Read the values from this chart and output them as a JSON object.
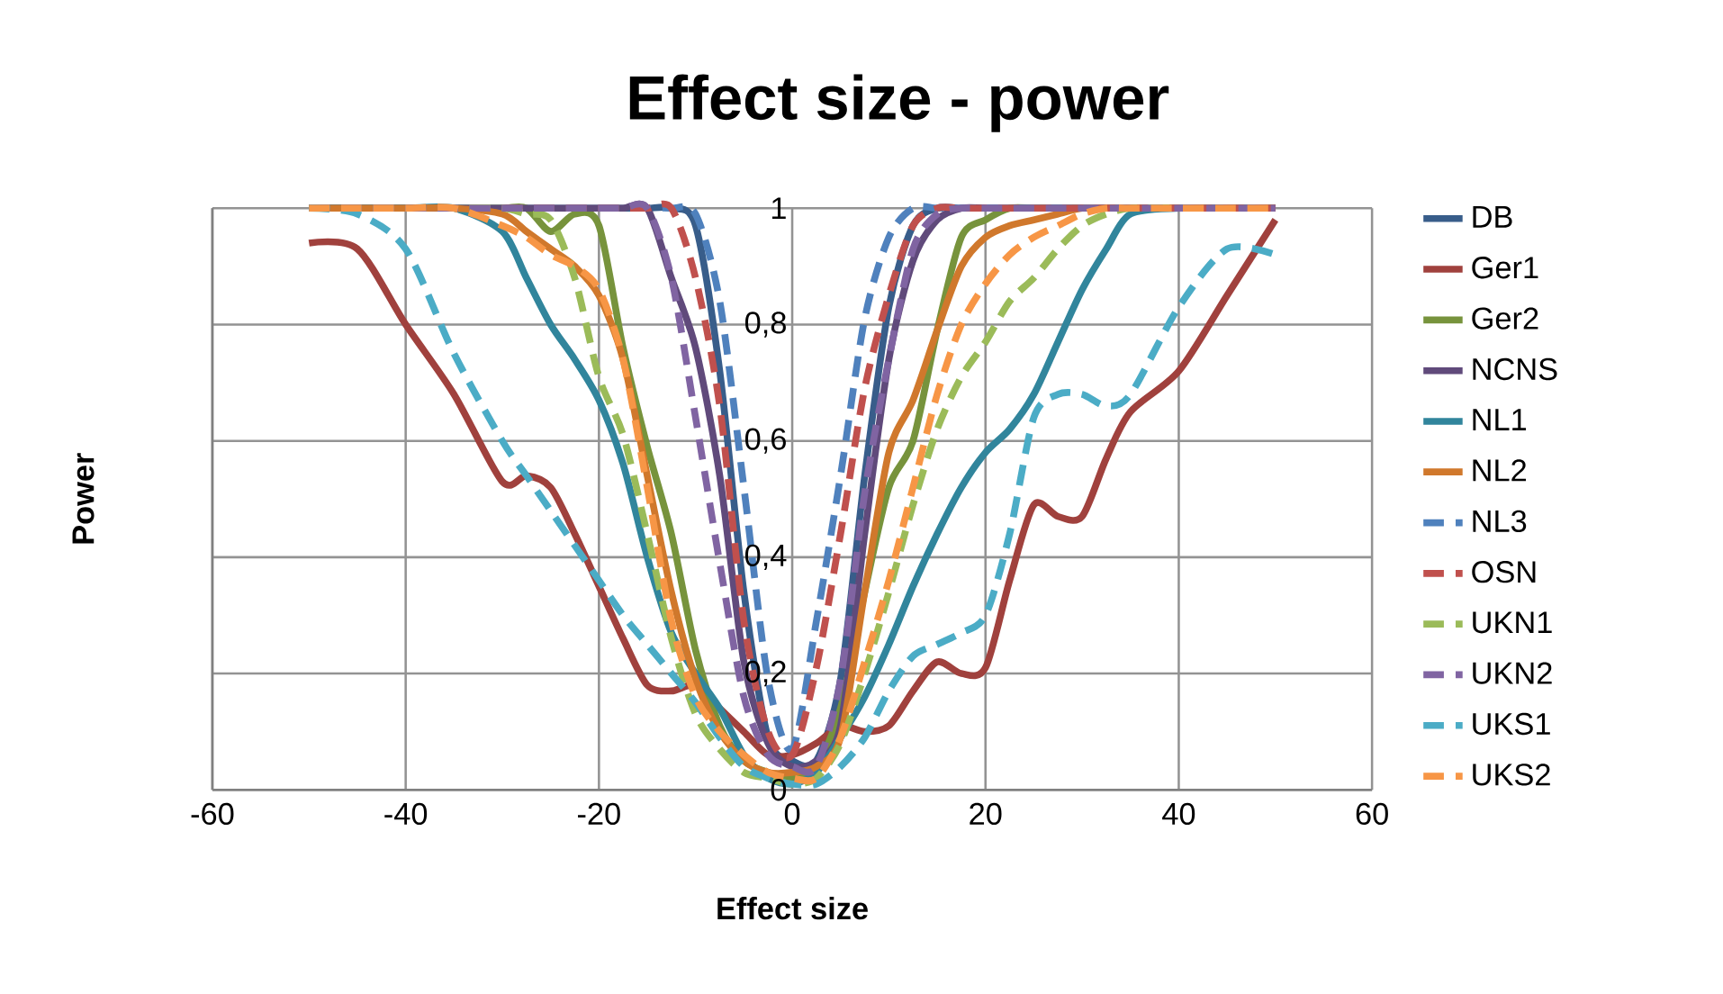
{
  "chart_data": {
    "type": "line",
    "title": "Effect size - power",
    "xlabel": "Effect size",
    "ylabel": "Power",
    "x": [
      -50,
      -45,
      -40,
      -35,
      -30,
      -27.5,
      -25,
      -22.5,
      -20,
      -17.5,
      -15,
      -12.5,
      -10,
      -7.5,
      -5,
      -2.5,
      0,
      2.5,
      5,
      7.5,
      10,
      12.5,
      15,
      17.5,
      20,
      22.5,
      25,
      27.5,
      30,
      32.5,
      35,
      40,
      45,
      50
    ],
    "xlim": [
      -60,
      60
    ],
    "xticks": [
      -60,
      -40,
      -20,
      0,
      20,
      40,
      60
    ],
    "ylim": [
      0,
      1
    ],
    "yticks": [
      0,
      {
        "value": 0.2,
        "label": "0,2"
      },
      {
        "value": 0.4,
        "label": "0,4"
      },
      {
        "value": 0.6,
        "label": "0,6"
      },
      {
        "value": 0.8,
        "label": "0,8"
      },
      1
    ],
    "grid": true,
    "legend": "right",
    "series": [
      {
        "name": "DB",
        "color": "#385d8a",
        "line_style": "solid",
        "values": [
          1,
          1,
          1,
          1,
          1,
          1,
          1,
          1,
          1,
          1,
          1,
          1,
          0.97,
          0.72,
          0.34,
          0.09,
          0.05,
          0.05,
          0.19,
          0.54,
          0.83,
          0.97,
          1,
          1,
          1,
          1,
          1,
          1,
          1,
          1,
          1,
          1,
          1,
          1
        ]
      },
      {
        "name": "Ger1",
        "color": "#a0413d",
        "line_style": "solid",
        "values": [
          0.94,
          0.93,
          0.8,
          0.68,
          0.53,
          0.54,
          0.52,
          0.44,
          0.35,
          0.26,
          0.18,
          0.17,
          0.18,
          0.14,
          0.1,
          0.06,
          0.06,
          0.08,
          0.11,
          0.1,
          0.11,
          0.17,
          0.22,
          0.2,
          0.21,
          0.36,
          0.49,
          0.47,
          0.47,
          0.57,
          0.65,
          0.72,
          0.85,
          0.98
        ]
      },
      {
        "name": "Ger2",
        "color": "#77933c",
        "line_style": "solid",
        "values": [
          1,
          1,
          1,
          1,
          1,
          1,
          0.96,
          0.99,
          0.97,
          0.76,
          0.59,
          0.44,
          0.24,
          0.11,
          0.05,
          0.03,
          0.02,
          0.04,
          0.14,
          0.34,
          0.52,
          0.6,
          0.79,
          0.95,
          0.98,
          1,
          1,
          1,
          1,
          1,
          1,
          1,
          1,
          1
        ]
      },
      {
        "name": "NCNS",
        "color": "#604a7b",
        "line_style": "solid",
        "values": [
          1,
          1,
          1,
          1,
          1,
          1,
          1,
          1,
          1,
          1,
          1,
          0.88,
          0.76,
          0.54,
          0.22,
          0.08,
          0.04,
          0.05,
          0.11,
          0.44,
          0.74,
          0.91,
          0.98,
          1,
          1,
          1,
          1,
          1,
          1,
          1,
          1,
          1,
          1,
          1
        ]
      },
      {
        "name": "NL1",
        "color": "#31859c",
        "line_style": "solid",
        "values": [
          1,
          1,
          1,
          1,
          0.96,
          0.88,
          0.8,
          0.74,
          0.67,
          0.56,
          0.4,
          0.27,
          0.2,
          0.14,
          0.06,
          0.02,
          0.01,
          0.03,
          0.09,
          0.16,
          0.25,
          0.35,
          0.44,
          0.52,
          0.58,
          0.62,
          0.68,
          0.77,
          0.86,
          0.93,
          0.99,
          1,
          1,
          1
        ]
      },
      {
        "name": "NL2",
        "color": "#d0782c",
        "line_style": "solid",
        "values": [
          1,
          1,
          1,
          1,
          0.99,
          0.96,
          0.93,
          0.9,
          0.85,
          0.74,
          0.54,
          0.34,
          0.19,
          0.1,
          0.05,
          0.03,
          0.03,
          0.04,
          0.09,
          0.34,
          0.58,
          0.67,
          0.79,
          0.9,
          0.95,
          0.97,
          0.98,
          0.99,
          1,
          1,
          1,
          1,
          1,
          1
        ]
      },
      {
        "name": "NL3",
        "color": "#4f81bd",
        "line_style": "dashed",
        "values": [
          1,
          1,
          1,
          1,
          1,
          1,
          1,
          1,
          1,
          1,
          1,
          1,
          0.99,
          0.84,
          0.52,
          0.19,
          0.07,
          0.29,
          0.54,
          0.81,
          0.95,
          1,
          1,
          1,
          1,
          1,
          1,
          1,
          1,
          1,
          1,
          1,
          1,
          1
        ]
      },
      {
        "name": "OSN",
        "color": "#c0504d",
        "line_style": "dashed",
        "values": [
          1,
          1,
          1,
          1,
          1,
          1,
          1,
          1,
          1,
          1,
          1,
          1,
          0.88,
          0.66,
          0.29,
          0.1,
          0.06,
          0.21,
          0.44,
          0.69,
          0.85,
          0.97,
          1,
          1,
          1,
          1,
          1,
          1,
          1,
          1,
          1,
          1,
          1,
          1
        ]
      },
      {
        "name": "UKN1",
        "color": "#9bbb59",
        "line_style": "dashed",
        "values": [
          1,
          1,
          1,
          1,
          1,
          0.99,
          0.98,
          0.88,
          0.71,
          0.61,
          0.44,
          0.26,
          0.13,
          0.07,
          0.03,
          0.02,
          0.01,
          0.02,
          0.08,
          0.2,
          0.34,
          0.49,
          0.62,
          0.71,
          0.77,
          0.84,
          0.88,
          0.93,
          0.97,
          0.99,
          1,
          1,
          null,
          null
        ]
      },
      {
        "name": "UKN2",
        "color": "#8064a2",
        "line_style": "dashed",
        "values": [
          1,
          1,
          1,
          1,
          1,
          1,
          1,
          1,
          1,
          1,
          1,
          0.88,
          0.64,
          0.39,
          0.16,
          0.06,
          0.04,
          0.04,
          0.19,
          0.51,
          0.74,
          0.93,
          0.99,
          1,
          1,
          1,
          1,
          1,
          1,
          1,
          1,
          1,
          1,
          1
        ]
      },
      {
        "name": "UKS1",
        "color": "#4bacc6",
        "line_style": "dashed",
        "values": [
          1,
          0.99,
          0.93,
          0.75,
          0.6,
          0.54,
          0.48,
          0.42,
          0.36,
          0.3,
          0.25,
          0.2,
          0.15,
          0.09,
          0.04,
          0.02,
          0.01,
          0.01,
          0.04,
          0.09,
          0.17,
          0.23,
          0.25,
          0.27,
          0.3,
          0.44,
          0.64,
          0.68,
          0.68,
          0.66,
          0.68,
          0.83,
          0.93,
          0.92
        ]
      },
      {
        "name": "UKS2",
        "color": "#f79646",
        "line_style": "dashed",
        "values": [
          1,
          1,
          1,
          1,
          0.97,
          0.95,
          0.92,
          0.9,
          0.86,
          0.74,
          0.52,
          0.29,
          0.16,
          0.1,
          0.06,
          0.03,
          0.02,
          0.02,
          0.09,
          0.22,
          0.36,
          0.52,
          0.68,
          0.8,
          0.87,
          0.92,
          0.95,
          0.97,
          0.99,
          1,
          1,
          1,
          1,
          1
        ]
      }
    ]
  }
}
